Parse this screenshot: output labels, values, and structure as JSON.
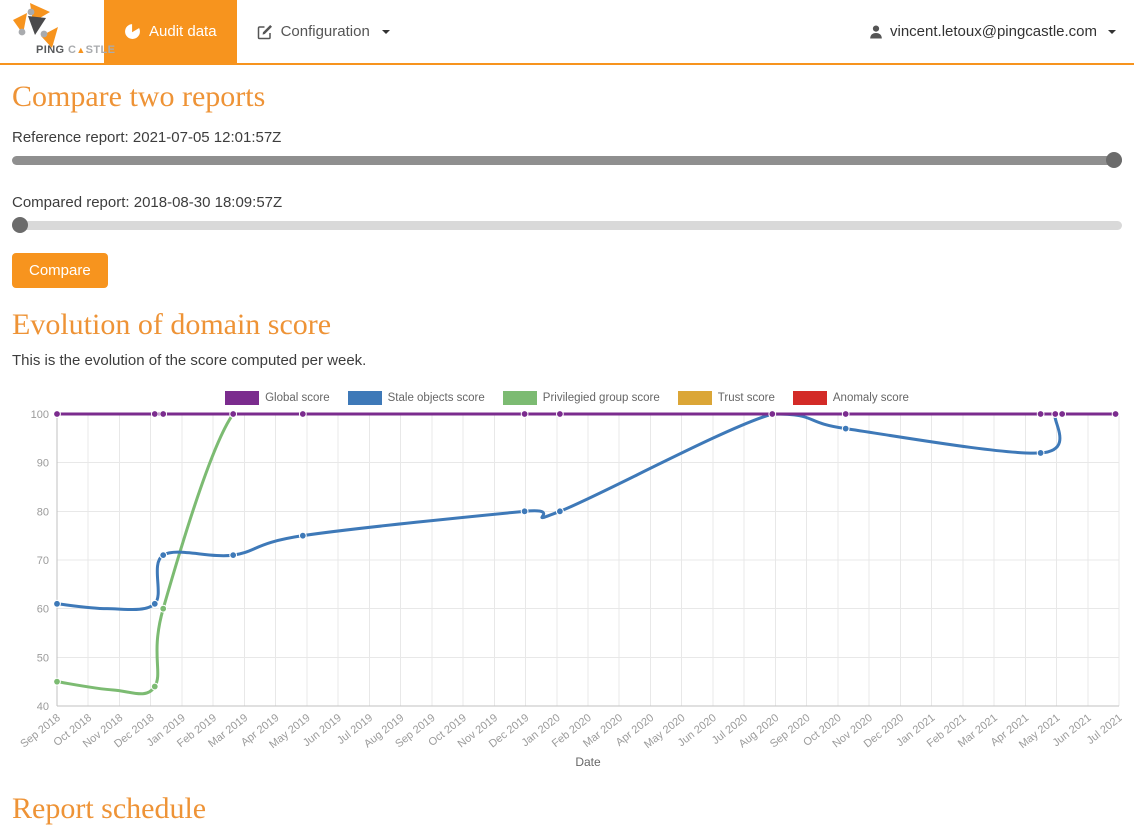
{
  "navbar": {
    "brand": {
      "ping": "PING",
      "castle_pre": "C",
      "castle_tri": "▲",
      "castle_post": "STLE"
    },
    "audit_label": "Audit data",
    "configuration_label": "Configuration",
    "user_email": "vincent.letoux@pingcastle.com"
  },
  "compare": {
    "title": "Compare two reports",
    "reference_label": "Reference report: 2021-07-05 12:01:57Z",
    "reference_value": "100",
    "compared_label": "Compared report: 2018-08-30 18:09:57Z",
    "compared_value": "0",
    "button_label": "Compare"
  },
  "evolution": {
    "title": "Evolution of domain score",
    "description": "This is the evolution of the score computed per week."
  },
  "schedule": {
    "title": "Report schedule"
  },
  "colors": {
    "brand_orange": "#f7941e",
    "heading_orange": "#ee9336",
    "grid": "#e8e8e8",
    "axis": "#c2c2c2",
    "tick_text": "#9b9b9b",
    "axis_title_text": "#666666"
  },
  "chart_data": {
    "type": "line",
    "xlabel": "Date",
    "ylabel": "",
    "ylim": [
      40,
      100
    ],
    "y_ticks": [
      40,
      50,
      60,
      70,
      80,
      90,
      100
    ],
    "grid": true,
    "legend_position": "top",
    "x_ticks": [
      "Sep 2018",
      "Oct 2018",
      "Nov 2018",
      "Dec 2018",
      "Jan 2019",
      "Feb 2019",
      "Mar 2019",
      "Apr 2019",
      "May 2019",
      "Jun 2019",
      "Jul 2019",
      "Aug 2019",
      "Sep 2019",
      "Oct 2019",
      "Nov 2019",
      "Dec 2019",
      "Jan 2020",
      "Feb 2020",
      "Mar 2020",
      "Apr 2020",
      "May 2020",
      "Jun 2020",
      "Jul 2020",
      "Aug 2020",
      "Sep 2020",
      "Oct 2020",
      "Nov 2020",
      "Dec 2020",
      "Jan 2021",
      "Feb 2021",
      "Mar 2021",
      "Apr 2021",
      "May 2021",
      "Jun 2021",
      "Jul 2021"
    ],
    "series": [
      {
        "name": "Global score",
        "color": "#7b2c8e",
        "points": [
          [
            0,
            100,
            1
          ],
          [
            3.13,
            100,
            1
          ],
          [
            3.4,
            100,
            1
          ],
          [
            5.64,
            100,
            1
          ],
          [
            7.87,
            100,
            1
          ],
          [
            14.97,
            100,
            1
          ],
          [
            16.1,
            100,
            1
          ],
          [
            22.9,
            100,
            1
          ],
          [
            25.25,
            100,
            1
          ],
          [
            31.49,
            100,
            1
          ],
          [
            31.96,
            100,
            1
          ],
          [
            32.18,
            100,
            1
          ],
          [
            33.89,
            100,
            1
          ]
        ]
      },
      {
        "name": "Stale objects score",
        "color": "#3e79b8",
        "points": [
          [
            0,
            61,
            1
          ],
          [
            1.6,
            60,
            0
          ],
          [
            3.13,
            61,
            1
          ],
          [
            3.4,
            71,
            1
          ],
          [
            5.64,
            71,
            1
          ],
          [
            7.87,
            75,
            1
          ],
          [
            14.97,
            80,
            1
          ],
          [
            16.1,
            80,
            1
          ],
          [
            22.9,
            100,
            1
          ],
          [
            25.25,
            97,
            1
          ],
          [
            31.49,
            92,
            1
          ],
          [
            31.96,
            100,
            1
          ],
          [
            32.18,
            100,
            1
          ],
          [
            33.89,
            100,
            1
          ]
        ]
      },
      {
        "name": "Privilegied group score",
        "color": "#7cbb72",
        "points": [
          [
            0,
            45,
            1
          ],
          [
            1.8,
            43.3,
            0
          ],
          [
            3.13,
            44,
            1
          ],
          [
            3.4,
            60,
            1
          ],
          [
            5.64,
            100,
            1
          ],
          [
            7.87,
            100,
            1
          ],
          [
            14.97,
            100,
            1
          ],
          [
            16.1,
            100,
            1
          ],
          [
            22.9,
            100,
            1
          ],
          [
            25.25,
            100,
            1
          ],
          [
            31.49,
            100,
            1
          ],
          [
            31.96,
            100,
            1
          ],
          [
            32.18,
            100,
            1
          ],
          [
            33.89,
            100,
            1
          ]
        ]
      },
      {
        "name": "Trust score",
        "color": "#dba637",
        "points": [
          [
            0,
            100,
            1
          ],
          [
            3.13,
            100,
            1
          ],
          [
            3.4,
            100,
            1
          ],
          [
            5.64,
            100,
            1
          ],
          [
            7.87,
            100,
            1
          ],
          [
            14.97,
            100,
            1
          ],
          [
            16.1,
            100,
            1
          ],
          [
            22.9,
            100,
            1
          ],
          [
            25.25,
            100,
            1
          ],
          [
            31.49,
            100,
            1
          ],
          [
            31.96,
            100,
            1
          ],
          [
            32.18,
            100,
            1
          ],
          [
            33.89,
            100,
            1
          ]
        ]
      },
      {
        "name": "Anomaly score",
        "color": "#d32b27",
        "points": [
          [
            0,
            100,
            1
          ],
          [
            3.13,
            100,
            1
          ],
          [
            3.4,
            100,
            1
          ],
          [
            5.64,
            100,
            1
          ],
          [
            7.87,
            100,
            1
          ],
          [
            14.97,
            100,
            1
          ],
          [
            16.1,
            100,
            1
          ],
          [
            22.9,
            100,
            1
          ],
          [
            25.25,
            100,
            1
          ],
          [
            31.49,
            100,
            1
          ],
          [
            31.96,
            100,
            1
          ],
          [
            32.18,
            100,
            1
          ],
          [
            33.89,
            100,
            1
          ]
        ]
      }
    ]
  }
}
